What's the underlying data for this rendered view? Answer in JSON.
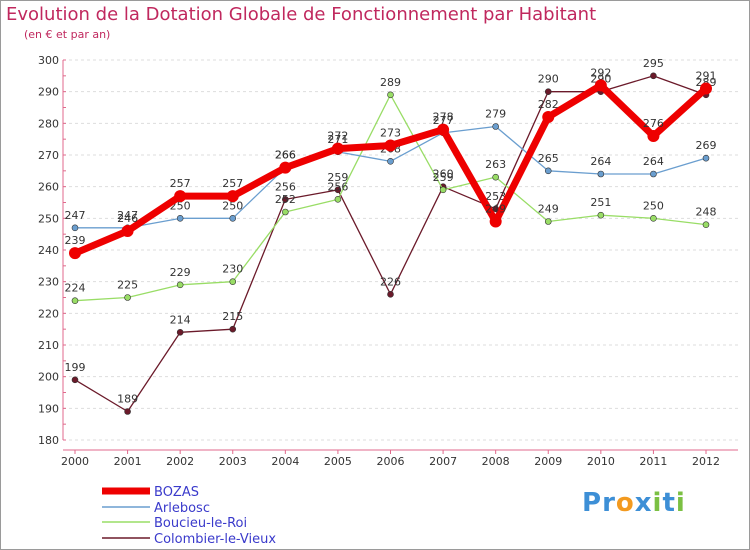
{
  "chart_data": {
    "type": "line",
    "title": "Evolution de la Dotation Globale de Fonctionnement par Habitant",
    "subtitle": "(en € et par an)",
    "xlabel": "",
    "ylabel": "",
    "ylim": [
      180,
      300
    ],
    "yticks": [
      180,
      190,
      200,
      210,
      220,
      230,
      240,
      250,
      260,
      270,
      280,
      290,
      300
    ],
    "x": [
      "2000",
      "2001",
      "2002",
      "2003",
      "2004",
      "2005",
      "2006",
      "2007",
      "2008",
      "2009",
      "2010",
      "2011",
      "2012"
    ],
    "series": [
      {
        "name": "Colombier-le-Vieux",
        "color": "#6b1a2a",
        "values": [
          199,
          189,
          214,
          215,
          256,
          259,
          226,
          260,
          253,
          290,
          290,
          295,
          289
        ]
      },
      {
        "name": "Boucieu-le-Roi",
        "color": "#99dd66",
        "values": [
          224,
          225,
          229,
          230,
          252,
          256,
          289,
          259,
          263,
          249,
          251,
          250,
          248
        ]
      },
      {
        "name": "Arlebosc",
        "color": "#6a9ecf",
        "values": [
          247,
          247,
          250,
          250,
          266,
          271,
          268,
          277,
          279,
          265,
          264,
          264,
          269
        ]
      },
      {
        "name": "BOZAS",
        "color": "#ee0000",
        "values": [
          239,
          246,
          257,
          257,
          266,
          272,
          273,
          278,
          249,
          282,
          292,
          276,
          291
        ]
      }
    ],
    "legend": [
      "BOZAS",
      "Arlebosc",
      "Boucieu-le-Roi",
      "Colombier-le-Vieux"
    ],
    "legend_position": "bottom-left"
  },
  "logo": {
    "text": "Proxiti",
    "letters": [
      "P",
      "r",
      "o",
      "x",
      "i",
      "t",
      "i"
    ],
    "colors": [
      "#3d8fd6",
      "#3d8fd6",
      "#f39a1f",
      "#3d8fd6",
      "#7bc043",
      "#3d8fd6",
      "#7bc043"
    ]
  }
}
